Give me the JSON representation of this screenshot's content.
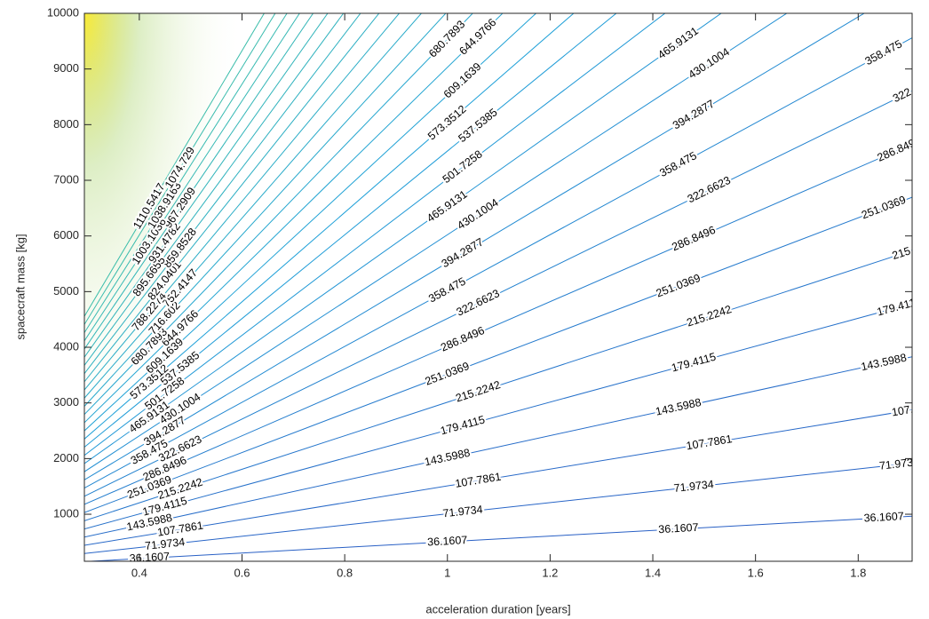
{
  "chart_data": {
    "type": "contour",
    "x_label": "acceleration duration [years]",
    "y_label": "spacecraft mass [kg]",
    "xlim": [
      0.293,
      1.905
    ],
    "ylim": [
      155,
      10000
    ],
    "xticks": [
      0.4,
      0.6,
      0.8,
      1,
      1.2,
      1.4,
      1.6,
      1.8
    ],
    "yticks": [
      1000,
      2000,
      3000,
      4000,
      5000,
      6000,
      7000,
      8000,
      9000,
      10000
    ],
    "levels": [
      36.1607,
      71.9734,
      107.7861,
      143.5988,
      179.4115,
      215.2242,
      251.0369,
      286.8496,
      322.6623,
      358.475,
      394.2877,
      430.1004,
      465.9131,
      501.7258,
      537.5385,
      573.3512,
      609.1639,
      644.9766,
      680.7893,
      716.602,
      752.4147,
      788.2274,
      824.0401,
      859.8528,
      895.6655,
      931.4782,
      967.2909,
      1003.1036,
      1038.9163,
      1074.729,
      1110.5417
    ]
  }
}
